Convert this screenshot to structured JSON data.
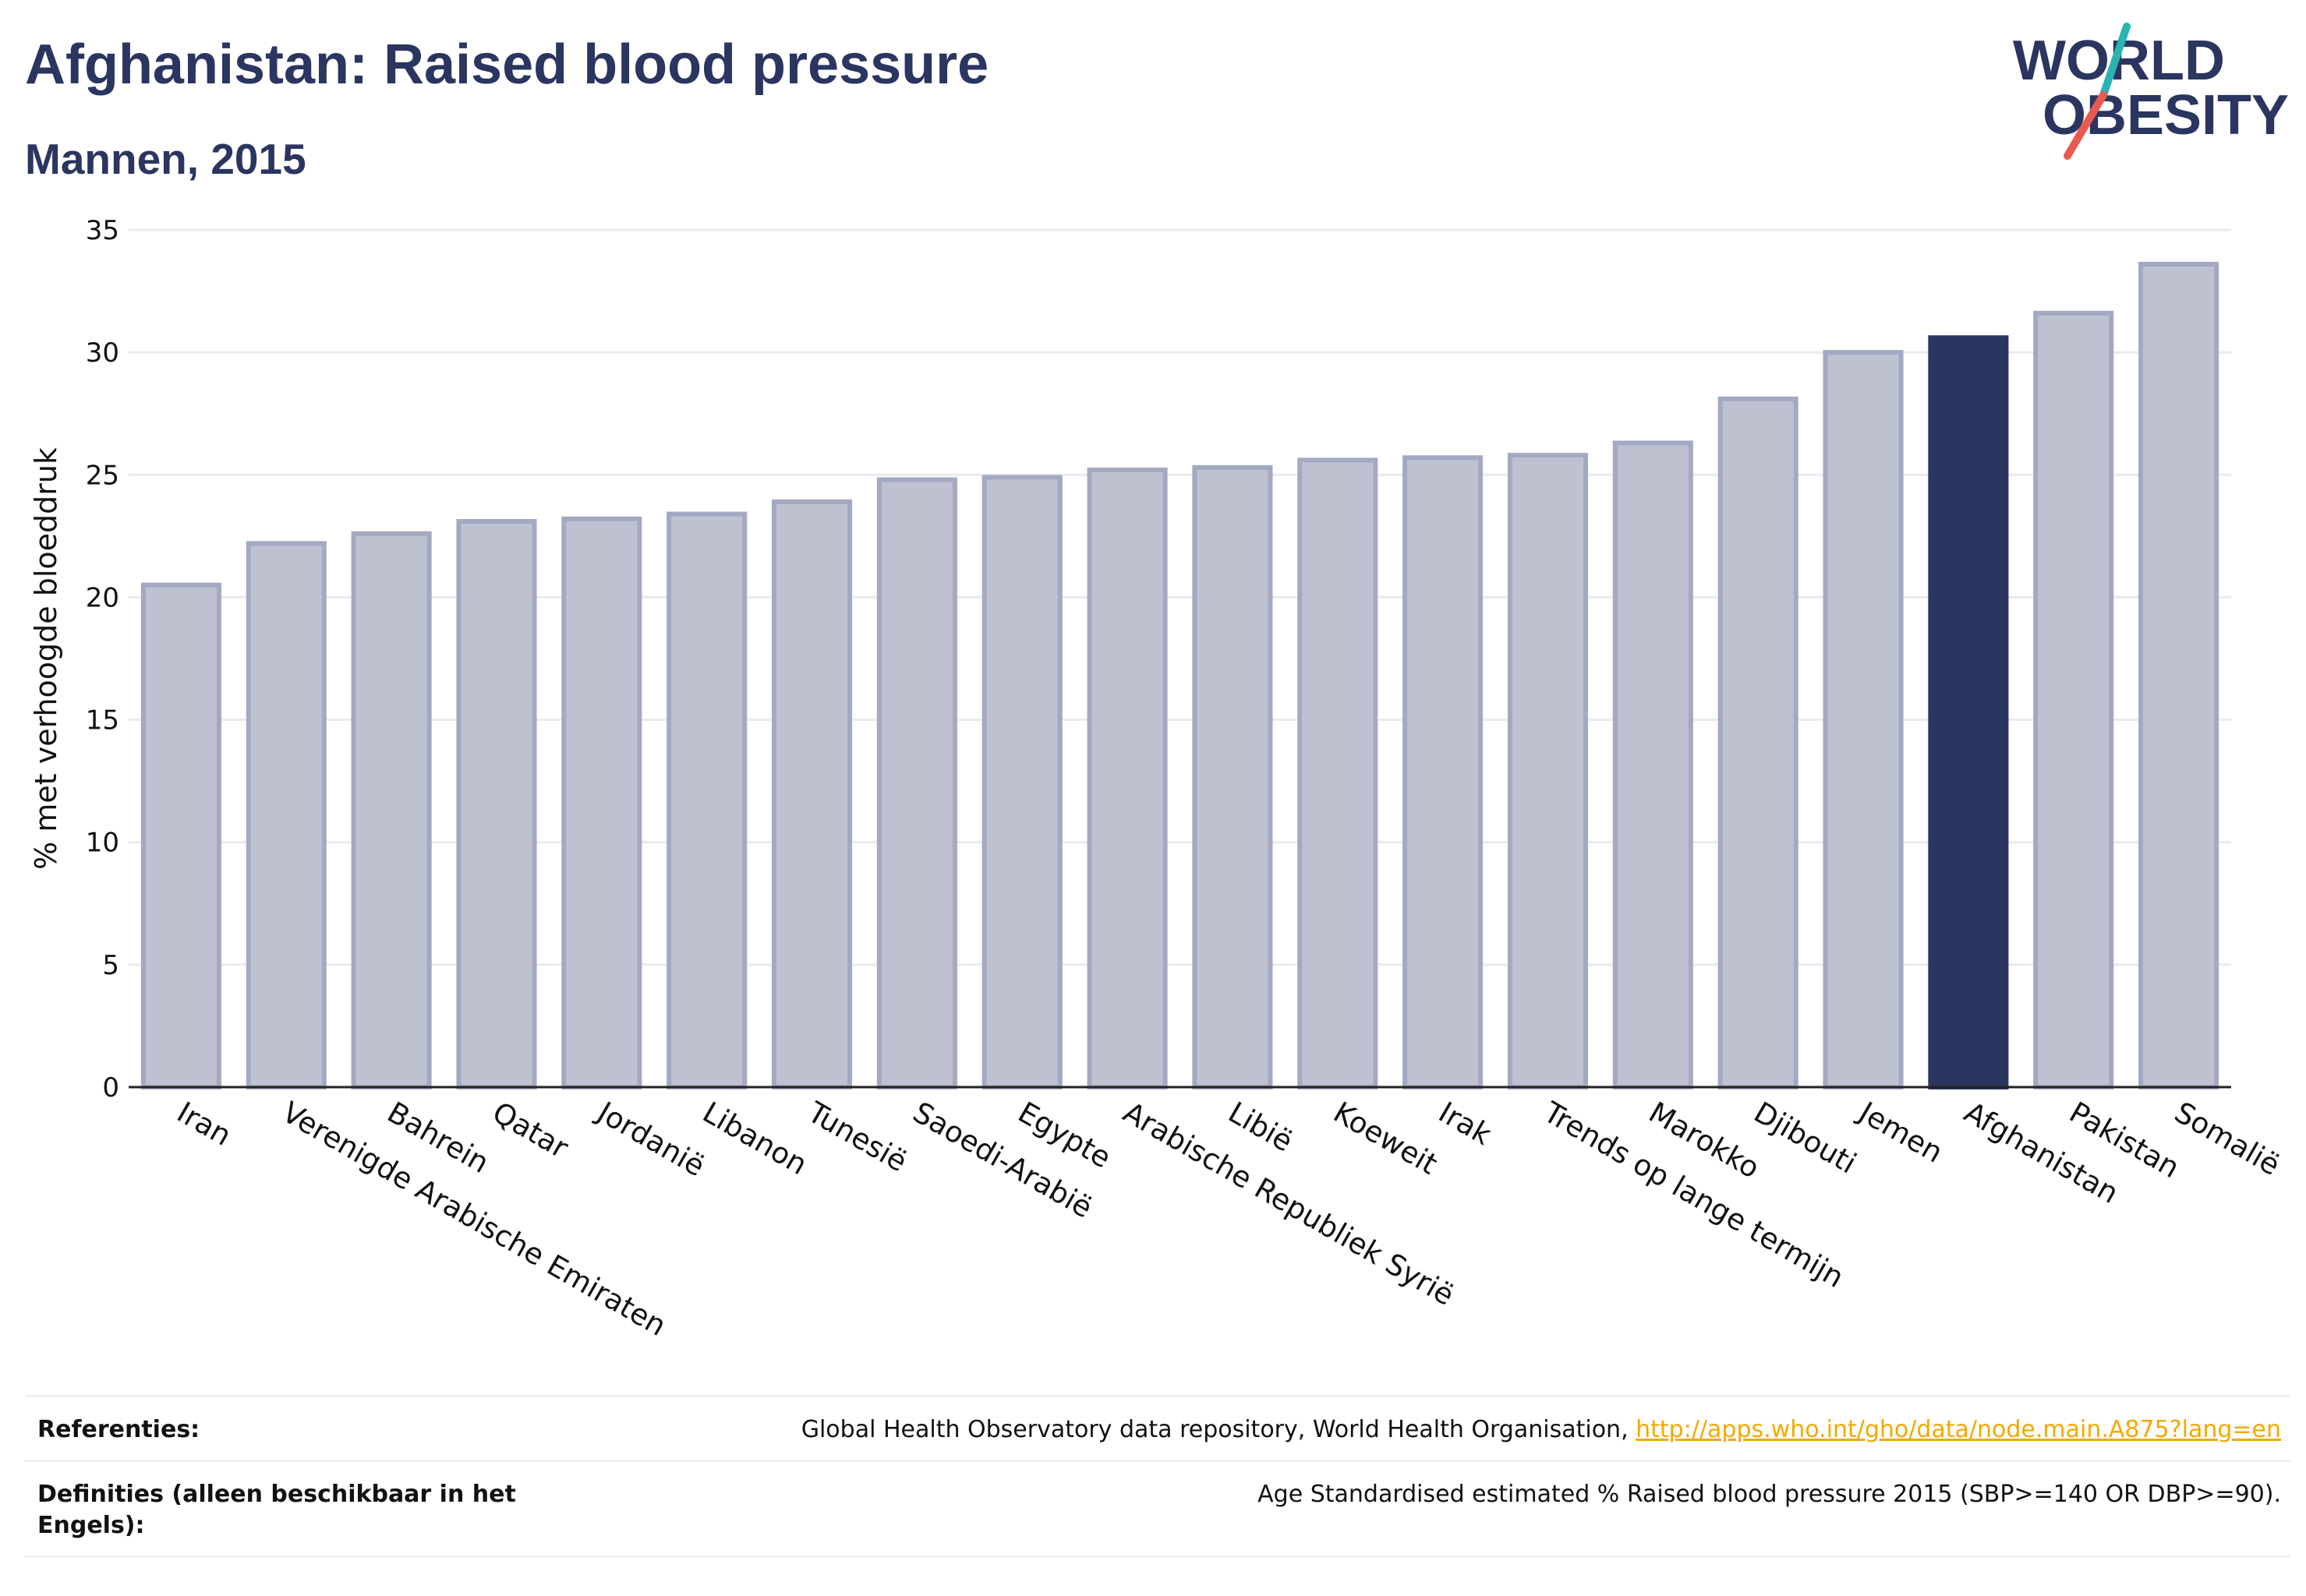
{
  "header": {
    "title": "Afghanistan: Raised blood pressure",
    "subtitle": "Mannen, 2015"
  },
  "logo": {
    "line1": "WORLD",
    "line2": "OBESITY",
    "colors": {
      "text": "#2a3560",
      "slash_top": "#2ab3b1",
      "slash_bottom": "#e85a4f"
    }
  },
  "chart_data": {
    "type": "bar",
    "ylabel": "% met verhoogde bloeddruk",
    "xlabel": "",
    "ylim": [
      0,
      35
    ],
    "yticks": [
      0,
      5,
      10,
      15,
      20,
      25,
      30,
      35
    ],
    "grid": true,
    "highlight": "Afghanistan",
    "colors": {
      "bar": "#bec2d0",
      "bar_edge": "#a3a9c2",
      "highlight": "#2a3560",
      "grid": "#e8eaf1",
      "axis": "#222222"
    },
    "categories": [
      "Iran",
      "Verenigde Arabische Emiraten",
      "Bahrein",
      "Qatar",
      "Jordanië",
      "Libanon",
      "Tunesië",
      "Saoedi-Arabië",
      "Egypte",
      "Arabische Republiek Syrië",
      "Libië",
      "Koeweit",
      "Irak",
      "Trends op lange termijn",
      "Marokko",
      "Djibouti",
      "Jemen",
      "Afghanistan",
      "Pakistan",
      "Somalië"
    ],
    "values": [
      20.5,
      22.2,
      22.6,
      23.1,
      23.2,
      23.4,
      23.9,
      24.8,
      24.9,
      25.2,
      25.3,
      25.6,
      25.7,
      25.8,
      26.3,
      28.1,
      30.0,
      30.6,
      31.6,
      33.6
    ]
  },
  "footer": {
    "references_label": "Referenties:",
    "references_text": "Global Health Observatory data repository, World Health Organisation, ",
    "references_link": "http://apps.who.int/gho/data/node.main.A875?lang=en",
    "definitions_label": "Definities (alleen beschikbaar in het Engels):",
    "definitions_text": "Age Standardised estimated % Raised blood pressure 2015 (SBP>=140 OR DBP>=90)."
  }
}
